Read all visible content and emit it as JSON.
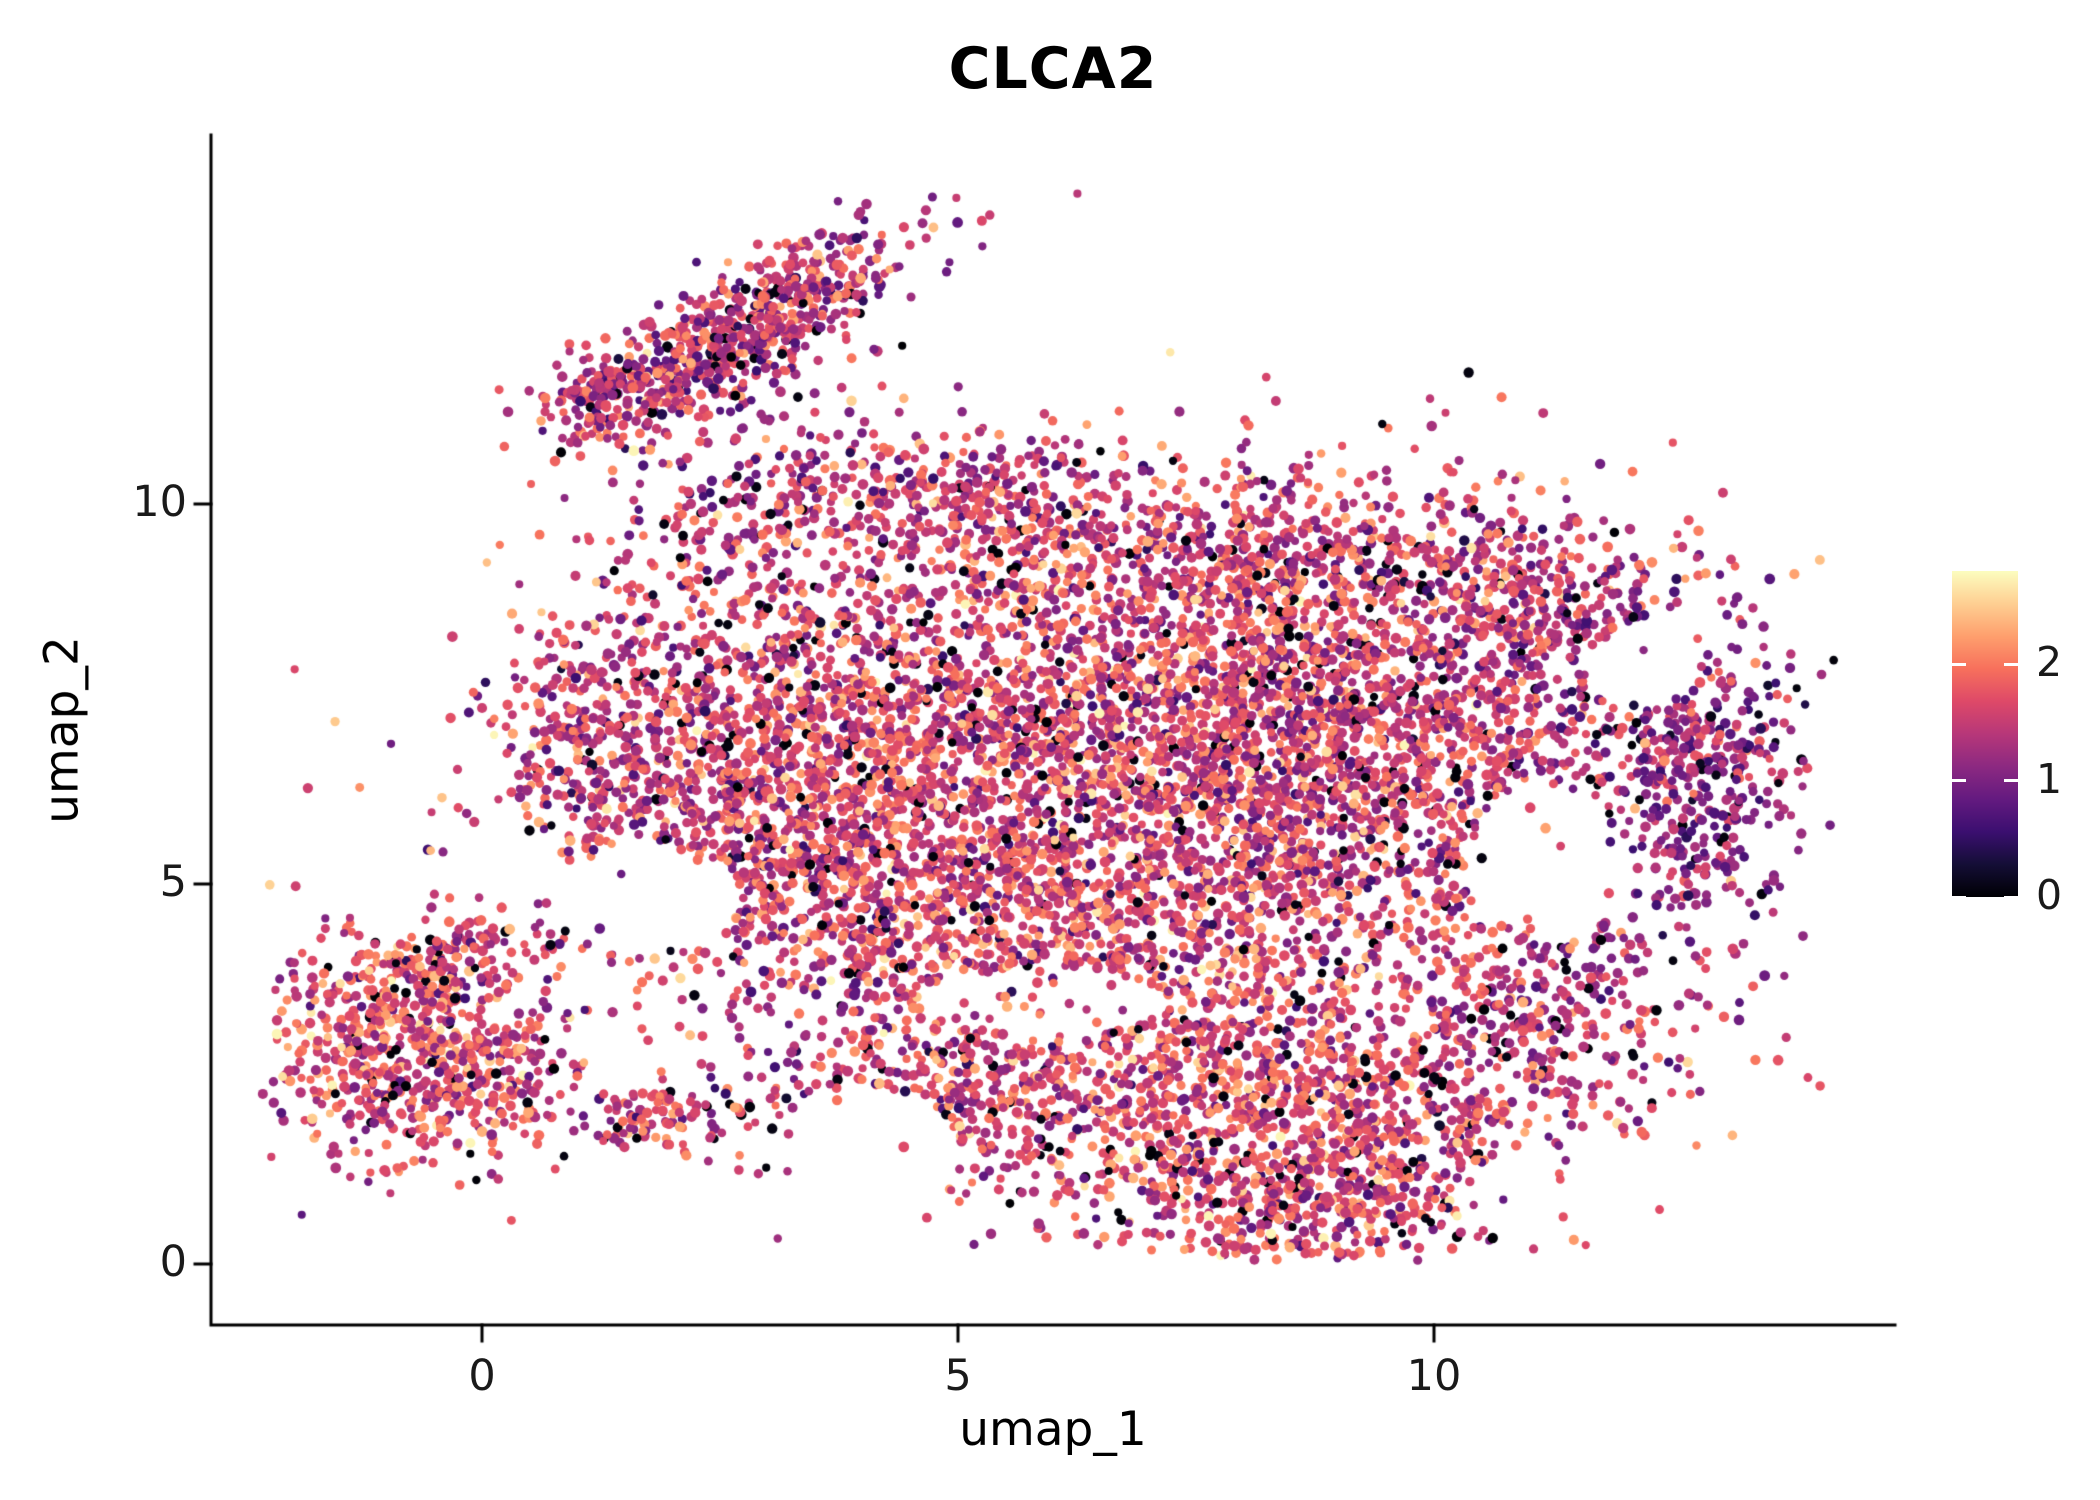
{
  "chart_data": {
    "type": "scatter",
    "title": "CLCA2",
    "xlabel": "umap_1",
    "ylabel": "umap_2",
    "x_ticks": [
      0,
      5,
      10
    ],
    "y_ticks": [
      0,
      5,
      10
    ],
    "xlim": [
      -2.8,
      14.85
    ],
    "ylim": [
      -0.7,
      14.75
    ],
    "grid": false,
    "background_color": "#ffffff",
    "axis_color": "#000000",
    "text_color": "#1a1a1a",
    "legend": {
      "type": "colorbar",
      "position": "right",
      "ticks": [
        0,
        1,
        2
      ],
      "vmin": 0,
      "vmax": 2.8
    },
    "colormap": {
      "name": "magma",
      "stops": [
        [
          0.0,
          "#000004"
        ],
        [
          0.1,
          "#140e36"
        ],
        [
          0.2,
          "#3b0f70"
        ],
        [
          0.3,
          "#641a80"
        ],
        [
          0.4,
          "#8c2981"
        ],
        [
          0.5,
          "#b73779"
        ],
        [
          0.6,
          "#de4968"
        ],
        [
          0.7,
          "#f7705c"
        ],
        [
          0.8,
          "#fe9f6d"
        ],
        [
          0.9,
          "#fecf92"
        ],
        [
          1.0,
          "#fcfdbf"
        ]
      ]
    },
    "points": {
      "radius_px": 4.7,
      "count_approx": 12000,
      "seed": 42,
      "zero_fraction": 0.055
    },
    "clusters": [
      {
        "name": "bottom-left-blob",
        "n": 620,
        "cx": -0.8,
        "cy": 2.8,
        "sx": 0.75,
        "sy": 0.72,
        "rot": -15,
        "vmean": 1.7,
        "vsd": 0.45
      },
      {
        "name": "bottom-left-top-edge",
        "n": 130,
        "cx": -0.3,
        "cy": 4.0,
        "sx": 0.6,
        "sy": 0.3,
        "rot": 10,
        "vmean": 1.55,
        "vsd": 0.45
      },
      {
        "name": "bottom-left-right-tail",
        "n": 70,
        "cx": 0.35,
        "cy": 2.5,
        "sx": 0.35,
        "sy": 0.5,
        "rot": 0,
        "vmean": 1.6,
        "vsd": 0.45
      },
      {
        "name": "small-clump",
        "n": 90,
        "cx": 1.75,
        "cy": 1.95,
        "sx": 0.32,
        "sy": 0.22,
        "rot": 0,
        "vmean": 1.55,
        "vsd": 0.4
      },
      {
        "name": "bridge-sparse",
        "n": 60,
        "cx": 3.2,
        "cy": 2.3,
        "sx": 0.55,
        "sy": 0.45,
        "rot": 0,
        "vmean": 1.4,
        "vsd": 0.5
      },
      {
        "name": "left-lobe",
        "n": 1250,
        "cx": 2.7,
        "cy": 6.7,
        "sx": 1.15,
        "sy": 1.5,
        "rot": -12,
        "vmean": 1.55,
        "vsd": 0.45
      },
      {
        "name": "left-bulge",
        "n": 170,
        "cx": 1.05,
        "cy": 6.9,
        "sx": 0.42,
        "sy": 0.85,
        "rot": 0,
        "vmean": 1.5,
        "vsd": 0.45
      },
      {
        "name": "central-mass",
        "n": 2100,
        "cx": 6.3,
        "cy": 6.7,
        "sx": 1.85,
        "sy": 1.45,
        "rot": 0,
        "vmean": 1.65,
        "vsd": 0.45
      },
      {
        "name": "central-lower",
        "n": 800,
        "cx": 5.2,
        "cy": 4.5,
        "sx": 1.6,
        "sy": 0.8,
        "rot": -8,
        "vmean": 1.6,
        "vsd": 0.45
      },
      {
        "name": "right-mass",
        "n": 1700,
        "cx": 9.3,
        "cy": 6.8,
        "sx": 1.4,
        "sy": 1.55,
        "rot": 0,
        "vmean": 1.55,
        "vsd": 0.45
      },
      {
        "name": "right-top-edge",
        "n": 280,
        "cx": 11.2,
        "cy": 8.7,
        "sx": 0.9,
        "sy": 0.5,
        "rot": -18,
        "vmean": 1.35,
        "vsd": 0.45
      },
      {
        "name": "far-right-lobe",
        "n": 330,
        "cx": 12.9,
        "cy": 6.5,
        "sx": 0.42,
        "sy": 0.95,
        "rot": 0,
        "vmean": 1.15,
        "vsd": 0.4
      },
      {
        "name": "right-sparse-ring",
        "n": 170,
        "cx": 11.7,
        "cy": 6.2,
        "sx": 0.75,
        "sy": 1.3,
        "rot": 0,
        "vmean": 1.25,
        "vsd": 0.45
      },
      {
        "name": "right-lower",
        "n": 320,
        "cx": 11.0,
        "cy": 3.4,
        "sx": 1.0,
        "sy": 0.95,
        "rot": 25,
        "vmean": 1.5,
        "vsd": 0.45
      },
      {
        "name": "bottom-band",
        "n": 1350,
        "cx": 8.1,
        "cy": 2.1,
        "sx": 1.9,
        "sy": 0.95,
        "rot": -5,
        "vmean": 1.65,
        "vsd": 0.45
      },
      {
        "name": "band-left",
        "n": 280,
        "cx": 5.1,
        "cy": 2.5,
        "sx": 0.8,
        "sy": 0.65,
        "rot": -10,
        "vmean": 1.6,
        "vsd": 0.45
      },
      {
        "name": "bottom-tip",
        "n": 330,
        "cx": 9.0,
        "cy": 0.75,
        "sx": 1.1,
        "sy": 0.42,
        "rot": 5,
        "vmean": 1.6,
        "vsd": 0.45
      },
      {
        "name": "top-arm",
        "n": 620,
        "cx": 2.75,
        "cy": 12.3,
        "sx": 1.0,
        "sy": 0.34,
        "rot": 36,
        "vmean": 1.45,
        "vsd": 0.45
      },
      {
        "name": "arm-hook",
        "n": 130,
        "cx": 1.35,
        "cy": 11.5,
        "sx": 0.38,
        "sy": 0.26,
        "rot": 15,
        "vmean": 1.4,
        "vsd": 0.45
      },
      {
        "name": "arm-base-scatter",
        "n": 210,
        "cx": 2.9,
        "cy": 10.3,
        "sx": 0.85,
        "sy": 0.7,
        "rot": 20,
        "vmean": 1.35,
        "vsd": 0.45
      },
      {
        "name": "top-mid-scatter",
        "n": 240,
        "cx": 5.3,
        "cy": 10.1,
        "sx": 1.05,
        "sy": 0.45,
        "rot": 0,
        "vmean": 1.5,
        "vsd": 0.45
      },
      {
        "name": "top-fill",
        "n": 520,
        "cx": 7.6,
        "cy": 9.4,
        "sx": 2.0,
        "sy": 0.6,
        "rot": 0,
        "vmean": 1.55,
        "vsd": 0.45
      },
      {
        "name": "diffuse-fill",
        "n": 420,
        "cx": 7.0,
        "cy": 6.3,
        "sx": 3.0,
        "sy": 2.2,
        "rot": 0,
        "vmean": 1.45,
        "vsd": 0.5
      }
    ],
    "holes": [
      {
        "cx": 11.2,
        "cy": 5.3,
        "rx": 0.85,
        "ry": 1.0
      },
      {
        "cx": 5.9,
        "cy": 3.45,
        "rx": 1.3,
        "ry": 0.45
      },
      {
        "cx": 4.1,
        "cy": 1.5,
        "rx": 0.9,
        "ry": 0.8
      },
      {
        "cx": 1.7,
        "cy": 4.8,
        "rx": 1.0,
        "ry": 0.7
      },
      {
        "cx": 0.3,
        "cy": 5.3,
        "rx": 0.6,
        "ry": 0.5
      },
      {
        "cx": 12.2,
        "cy": 7.9,
        "rx": 0.6,
        "ry": 0.55
      },
      {
        "cx": 11.2,
        "cy": 0.9,
        "rx": 1.0,
        "ry": 0.6
      }
    ]
  }
}
